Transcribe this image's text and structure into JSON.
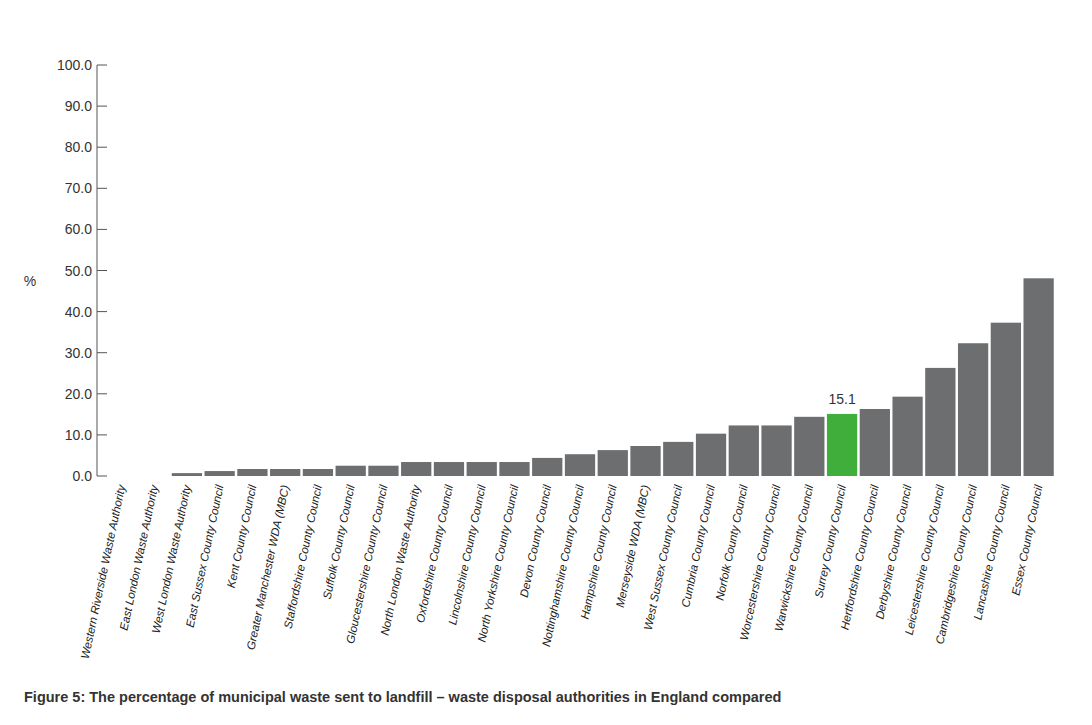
{
  "chart_data": {
    "type": "bar",
    "title": "Figure 5: The percentage of municipal waste sent to landfill – waste disposal authorities in England compared",
    "y_label": "%",
    "categories": [
      "Western Riverside Waste Authority",
      "East London Waste Authority",
      "West London Waste Authority",
      "East Sussex County Council",
      "Kent County Council",
      "Greater Manchester WDA (MBC)",
      "Staffordshire County Council",
      "Suffolk County Council",
      "Gloucestershire County Council",
      "North London Waste Authority",
      "Oxfordshire County Council",
      "Lincolnshire County Council",
      "North Yorkshire County Council",
      "Devon County Council",
      "Nottinghamshire County Council",
      "Hampshire County Council",
      "Merseyside WDA (MBC)",
      "West Sussex County Council",
      "Cumbria County Council",
      "Norfolk County Council",
      "Worcestershire County Council",
      "Warwickshire County Council",
      "Surrey County Council",
      "Hertfordshire County Council",
      "Derbyshire County Council",
      "Leicestershire County Council",
      "Cambridgeshire County Council",
      "Lancashire County Council",
      "Essex County Council"
    ],
    "values": [
      0,
      0,
      0.7,
      1.2,
      1.7,
      1.7,
      1.7,
      2.5,
      2.5,
      3.4,
      3.4,
      3.4,
      3.4,
      4.4,
      5.3,
      6.3,
      7.3,
      8.3,
      10.3,
      12.3,
      12.3,
      14.4,
      15.1,
      16.3,
      19.3,
      26.3,
      32.3,
      37.3,
      48.1
    ],
    "value_labels": [
      null,
      null,
      null,
      null,
      null,
      null,
      null,
      null,
      null,
      null,
      null,
      null,
      null,
      null,
      null,
      null,
      null,
      null,
      null,
      null,
      null,
      null,
      "15.1",
      null,
      null,
      null,
      null,
      null,
      null
    ],
    "data_labels": true,
    "colors": [
      "#6d6e70",
      "#6d6e70",
      "#6d6e70",
      "#6d6e70",
      "#6d6e70",
      "#6d6e70",
      "#6d6e70",
      "#6d6e70",
      "#6d6e70",
      "#6d6e70",
      "#6d6e70",
      "#6d6e70",
      "#6d6e70",
      "#6d6e70",
      "#6d6e70",
      "#6d6e70",
      "#6d6e70",
      "#6d6e70",
      "#6d6e70",
      "#6d6e70",
      "#6d6e70",
      "#6d6e70",
      "#3fae3a",
      "#6d6e70",
      "#6d6e70",
      "#6d6e70",
      "#6d6e70",
      "#6d6e70",
      "#6d6e70"
    ],
    "ylim": [
      0,
      100
    ],
    "yticks": [
      {
        "value": 0,
        "label": "0.0"
      },
      {
        "value": 10,
        "label": "10.0"
      },
      {
        "value": 20,
        "label": "20.0"
      },
      {
        "value": 30,
        "label": "30.0"
      },
      {
        "value": 40,
        "label": "40.0"
      },
      {
        "value": 50,
        "label": "50.0"
      },
      {
        "value": 60,
        "label": "60.0"
      },
      {
        "value": 70,
        "label": "70.0"
      },
      {
        "value": 80,
        "label": "80.0"
      },
      {
        "value": 90,
        "label": "90.0"
      },
      {
        "value": 100,
        "label": "100.0"
      }
    ],
    "grid": false
  }
}
